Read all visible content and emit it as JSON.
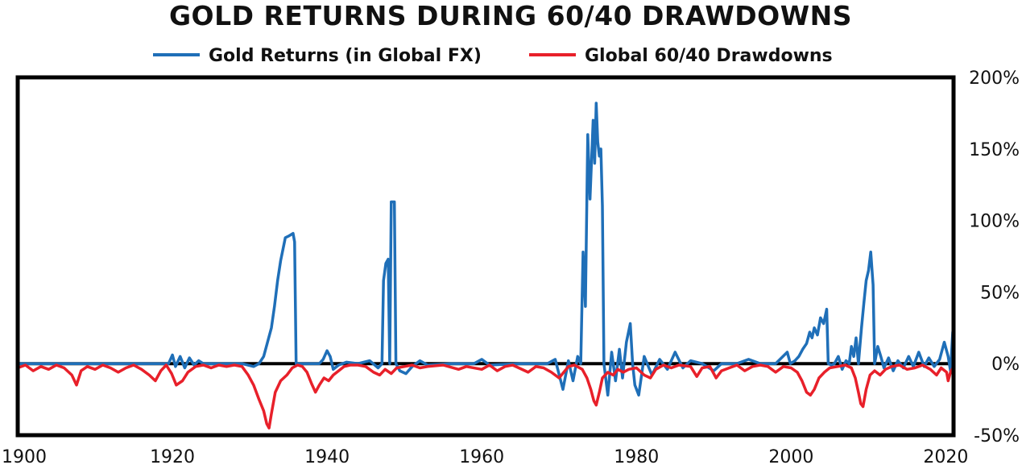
{
  "chart_data": {
    "type": "line",
    "title": "GOLD RETURNS DURING 60/40 DRAWDOWNS",
    "xlabel": "",
    "ylabel": "",
    "xlim": [
      1900,
      2021
    ],
    "ylim": [
      -50,
      200
    ],
    "x_ticks": [
      "1900",
      "1920",
      "1940",
      "1960",
      "1980",
      "2000",
      "2020"
    ],
    "y_ticks": [
      "200%",
      "150%",
      "100%",
      "50%",
      "0%",
      "-50%"
    ],
    "legend_position": "top-center",
    "series": [
      {
        "name": "Gold Returns (in Global FX)",
        "color": "#1f6fb8",
        "points": [
          [
            1900,
            0
          ],
          [
            1919.5,
            0
          ],
          [
            1920,
            6
          ],
          [
            1920.4,
            -2
          ],
          [
            1921,
            5
          ],
          [
            1921.6,
            -3
          ],
          [
            1922.2,
            4
          ],
          [
            1922.8,
            -1
          ],
          [
            1923.4,
            2
          ],
          [
            1924,
            0
          ],
          [
            1929,
            0
          ],
          [
            1930.5,
            -2
          ],
          [
            1931.2,
            0
          ],
          [
            1931.8,
            5
          ],
          [
            1932.3,
            15
          ],
          [
            1932.8,
            25
          ],
          [
            1933.2,
            40
          ],
          [
            1933.6,
            58
          ],
          [
            1934,
            72
          ],
          [
            1934.3,
            80
          ],
          [
            1934.6,
            88
          ],
          [
            1935,
            89
          ],
          [
            1935.3,
            90
          ],
          [
            1935.6,
            91
          ],
          [
            1935.8,
            85
          ],
          [
            1936,
            0
          ],
          [
            1939,
            0
          ],
          [
            1939.5,
            3
          ],
          [
            1940,
            9
          ],
          [
            1940.4,
            5
          ],
          [
            1940.8,
            -4
          ],
          [
            1941.5,
            -1
          ],
          [
            1942.5,
            1
          ],
          [
            1944,
            0
          ],
          [
            1945.5,
            2
          ],
          [
            1946.6,
            -3
          ],
          [
            1947.1,
            0
          ],
          [
            1947.3,
            58
          ],
          [
            1947.6,
            70
          ],
          [
            1947.9,
            73
          ],
          [
            1948.1,
            0
          ],
          [
            1948.3,
            113
          ],
          [
            1948.7,
            113
          ],
          [
            1948.9,
            0
          ],
          [
            1949.4,
            -5
          ],
          [
            1950.2,
            -7
          ],
          [
            1951,
            -2
          ],
          [
            1952,
            2
          ],
          [
            1953,
            -1
          ],
          [
            1956,
            0
          ],
          [
            1959,
            0
          ],
          [
            1960,
            3
          ],
          [
            1961,
            -1
          ],
          [
            1965,
            0
          ],
          [
            1968.5,
            0
          ],
          [
            1969.5,
            3
          ],
          [
            1970.5,
            -18
          ],
          [
            1971.2,
            2
          ],
          [
            1971.8,
            -12
          ],
          [
            1972.4,
            5
          ],
          [
            1972.8,
            0
          ],
          [
            1973.1,
            78
          ],
          [
            1973.4,
            40
          ],
          [
            1973.7,
            160
          ],
          [
            1974,
            115
          ],
          [
            1974.4,
            170
          ],
          [
            1974.6,
            140
          ],
          [
            1974.8,
            182
          ],
          [
            1975,
            155
          ],
          [
            1975.2,
            145
          ],
          [
            1975.4,
            150
          ],
          [
            1975.6,
            110
          ],
          [
            1975.8,
            0
          ],
          [
            1976.3,
            -22
          ],
          [
            1976.8,
            8
          ],
          [
            1977.3,
            -12
          ],
          [
            1977.8,
            10
          ],
          [
            1978.2,
            -10
          ],
          [
            1978.7,
            15
          ],
          [
            1979.2,
            28
          ],
          [
            1979.5,
            0
          ],
          [
            1979.8,
            -15
          ],
          [
            1980.3,
            -22
          ],
          [
            1981,
            5
          ],
          [
            1982,
            -8
          ],
          [
            1983,
            3
          ],
          [
            1984,
            -4
          ],
          [
            1985,
            8
          ],
          [
            1986,
            -3
          ],
          [
            1987,
            2
          ],
          [
            1988.5,
            0
          ],
          [
            1990,
            -5
          ],
          [
            1991,
            0
          ],
          [
            1993,
            0
          ],
          [
            1994.5,
            3
          ],
          [
            1996,
            0
          ],
          [
            1998,
            0
          ],
          [
            1999.5,
            8
          ],
          [
            1999.9,
            0
          ],
          [
            2000.5,
            2
          ],
          [
            2001,
            5
          ],
          [
            2001.5,
            10
          ],
          [
            2002,
            14
          ],
          [
            2002.4,
            22
          ],
          [
            2002.7,
            18
          ],
          [
            2003,
            25
          ],
          [
            2003.4,
            20
          ],
          [
            2003.8,
            32
          ],
          [
            2004.2,
            28
          ],
          [
            2004.6,
            38
          ],
          [
            2004.8,
            0
          ],
          [
            2005.2,
            -1
          ],
          [
            2005.6,
            0
          ],
          [
            2006.1,
            5
          ],
          [
            2006.6,
            -4
          ],
          [
            2007.1,
            2
          ],
          [
            2007.5,
            0
          ],
          [
            2007.8,
            12
          ],
          [
            2008.1,
            5
          ],
          [
            2008.4,
            18
          ],
          [
            2008.7,
            0
          ],
          [
            2009.1,
            25
          ],
          [
            2009.4,
            42
          ],
          [
            2009.7,
            58
          ],
          [
            2010,
            65
          ],
          [
            2010.3,
            78
          ],
          [
            2010.6,
            55
          ],
          [
            2010.8,
            0
          ],
          [
            2011.2,
            12
          ],
          [
            2011.6,
            5
          ],
          [
            2012,
            -3
          ],
          [
            2012.6,
            4
          ],
          [
            2013.2,
            -5
          ],
          [
            2013.8,
            2
          ],
          [
            2014.5,
            -3
          ],
          [
            2015.2,
            5
          ],
          [
            2015.8,
            -2
          ],
          [
            2016.5,
            8
          ],
          [
            2017.2,
            -2
          ],
          [
            2017.8,
            4
          ],
          [
            2018.5,
            -2
          ],
          [
            2019.2,
            3
          ],
          [
            2019.8,
            15
          ],
          [
            2020.3,
            5
          ],
          [
            2020.6,
            -5
          ],
          [
            2020.9,
            22
          ],
          [
            2021,
            0
          ]
        ]
      },
      {
        "name": "Global 60/40 Drawdowns",
        "color": "#e8202a",
        "points": [
          [
            1900,
            -3
          ],
          [
            1901,
            -1
          ],
          [
            1902,
            -5
          ],
          [
            1903,
            -2
          ],
          [
            1904,
            -4
          ],
          [
            1905,
            -1
          ],
          [
            1906,
            -3
          ],
          [
            1907,
            -8
          ],
          [
            1907.6,
            -15
          ],
          [
            1908.2,
            -5
          ],
          [
            1909,
            -2
          ],
          [
            1910,
            -4
          ],
          [
            1911,
            -1
          ],
          [
            1912,
            -3
          ],
          [
            1913,
            -6
          ],
          [
            1914,
            -3
          ],
          [
            1915,
            -1
          ],
          [
            1916,
            -4
          ],
          [
            1917,
            -8
          ],
          [
            1917.8,
            -12
          ],
          [
            1918.5,
            -5
          ],
          [
            1919.2,
            -1
          ],
          [
            1919.9,
            -7
          ],
          [
            1920.5,
            -15
          ],
          [
            1921.3,
            -12
          ],
          [
            1922,
            -6
          ],
          [
            1923,
            -2
          ],
          [
            1924,
            -1
          ],
          [
            1925,
            -3
          ],
          [
            1926,
            -1
          ],
          [
            1927,
            -2
          ],
          [
            1928,
            -1
          ],
          [
            1929,
            -2
          ],
          [
            1929.8,
            -8
          ],
          [
            1930.5,
            -15
          ],
          [
            1931.2,
            -25
          ],
          [
            1931.8,
            -33
          ],
          [
            1932.2,
            -42
          ],
          [
            1932.5,
            -45
          ],
          [
            1932.8,
            -35
          ],
          [
            1933.3,
            -20
          ],
          [
            1934,
            -12
          ],
          [
            1934.8,
            -8
          ],
          [
            1935.5,
            -3
          ],
          [
            1936.2,
            -1
          ],
          [
            1936.8,
            -2
          ],
          [
            1937.4,
            -6
          ],
          [
            1938,
            -14
          ],
          [
            1938.5,
            -20
          ],
          [
            1939,
            -15
          ],
          [
            1939.6,
            -10
          ],
          [
            1940.2,
            -12
          ],
          [
            1940.8,
            -8
          ],
          [
            1941.5,
            -5
          ],
          [
            1942.2,
            -2
          ],
          [
            1943,
            -1
          ],
          [
            1944,
            -1
          ],
          [
            1945,
            -2
          ],
          [
            1946,
            -6
          ],
          [
            1946.8,
            -8
          ],
          [
            1947.5,
            -4
          ],
          [
            1948.3,
            -7
          ],
          [
            1949,
            -3
          ],
          [
            1950,
            -2
          ],
          [
            1951,
            -1
          ],
          [
            1952,
            -3
          ],
          [
            1953,
            -2
          ],
          [
            1955,
            -1
          ],
          [
            1957,
            -4
          ],
          [
            1958,
            -2
          ],
          [
            1960,
            -4
          ],
          [
            1961,
            -1
          ],
          [
            1962,
            -5
          ],
          [
            1963,
            -2
          ],
          [
            1964,
            -1
          ],
          [
            1966,
            -6
          ],
          [
            1967,
            -2
          ],
          [
            1968,
            -3
          ],
          [
            1969,
            -6
          ],
          [
            1970,
            -10
          ],
          [
            1970.6,
            -6
          ],
          [
            1971.2,
            -2
          ],
          [
            1972,
            -1
          ],
          [
            1973,
            -4
          ],
          [
            1973.6,
            -10
          ],
          [
            1974.1,
            -18
          ],
          [
            1974.5,
            -26
          ],
          [
            1974.8,
            -29
          ],
          [
            1975.2,
            -20
          ],
          [
            1975.6,
            -10
          ],
          [
            1976.3,
            -6
          ],
          [
            1977,
            -8
          ],
          [
            1977.6,
            -4
          ],
          [
            1978.3,
            -6
          ],
          [
            1979,
            -4
          ],
          [
            1980,
            -3
          ],
          [
            1981,
            -8
          ],
          [
            1981.8,
            -10
          ],
          [
            1982.5,
            -4
          ],
          [
            1983.5,
            -1
          ],
          [
            1984.5,
            -3
          ],
          [
            1985.5,
            -1
          ],
          [
            1987,
            -2
          ],
          [
            1987.8,
            -9
          ],
          [
            1988.5,
            -3
          ],
          [
            1989.5,
            -2
          ],
          [
            1990.3,
            -10
          ],
          [
            1991,
            -5
          ],
          [
            1992,
            -3
          ],
          [
            1993,
            -1
          ],
          [
            1994,
            -5
          ],
          [
            1995,
            -2
          ],
          [
            1996,
            -1
          ],
          [
            1997,
            -2
          ],
          [
            1998,
            -6
          ],
          [
            1999,
            -2
          ],
          [
            2000,
            -3
          ],
          [
            2000.8,
            -6
          ],
          [
            2001.4,
            -12
          ],
          [
            2002,
            -20
          ],
          [
            2002.5,
            -22
          ],
          [
            2003,
            -18
          ],
          [
            2003.6,
            -10
          ],
          [
            2004.3,
            -6
          ],
          [
            2005,
            -3
          ],
          [
            2006,
            -2
          ],
          [
            2007,
            -1
          ],
          [
            2007.8,
            -3
          ],
          [
            2008.3,
            -10
          ],
          [
            2008.7,
            -20
          ],
          [
            2009,
            -28
          ],
          [
            2009.3,
            -30
          ],
          [
            2009.7,
            -18
          ],
          [
            2010.2,
            -8
          ],
          [
            2010.8,
            -5
          ],
          [
            2011.5,
            -8
          ],
          [
            2012.2,
            -4
          ],
          [
            2013,
            -2
          ],
          [
            2014,
            -1
          ],
          [
            2015,
            -4
          ],
          [
            2016,
            -3
          ],
          [
            2017,
            -1
          ],
          [
            2018,
            -4
          ],
          [
            2018.8,
            -8
          ],
          [
            2019.4,
            -3
          ],
          [
            2020.1,
            -6
          ],
          [
            2020.3,
            -12
          ],
          [
            2020.6,
            -6
          ],
          [
            2021,
            -2
          ]
        ]
      }
    ]
  }
}
